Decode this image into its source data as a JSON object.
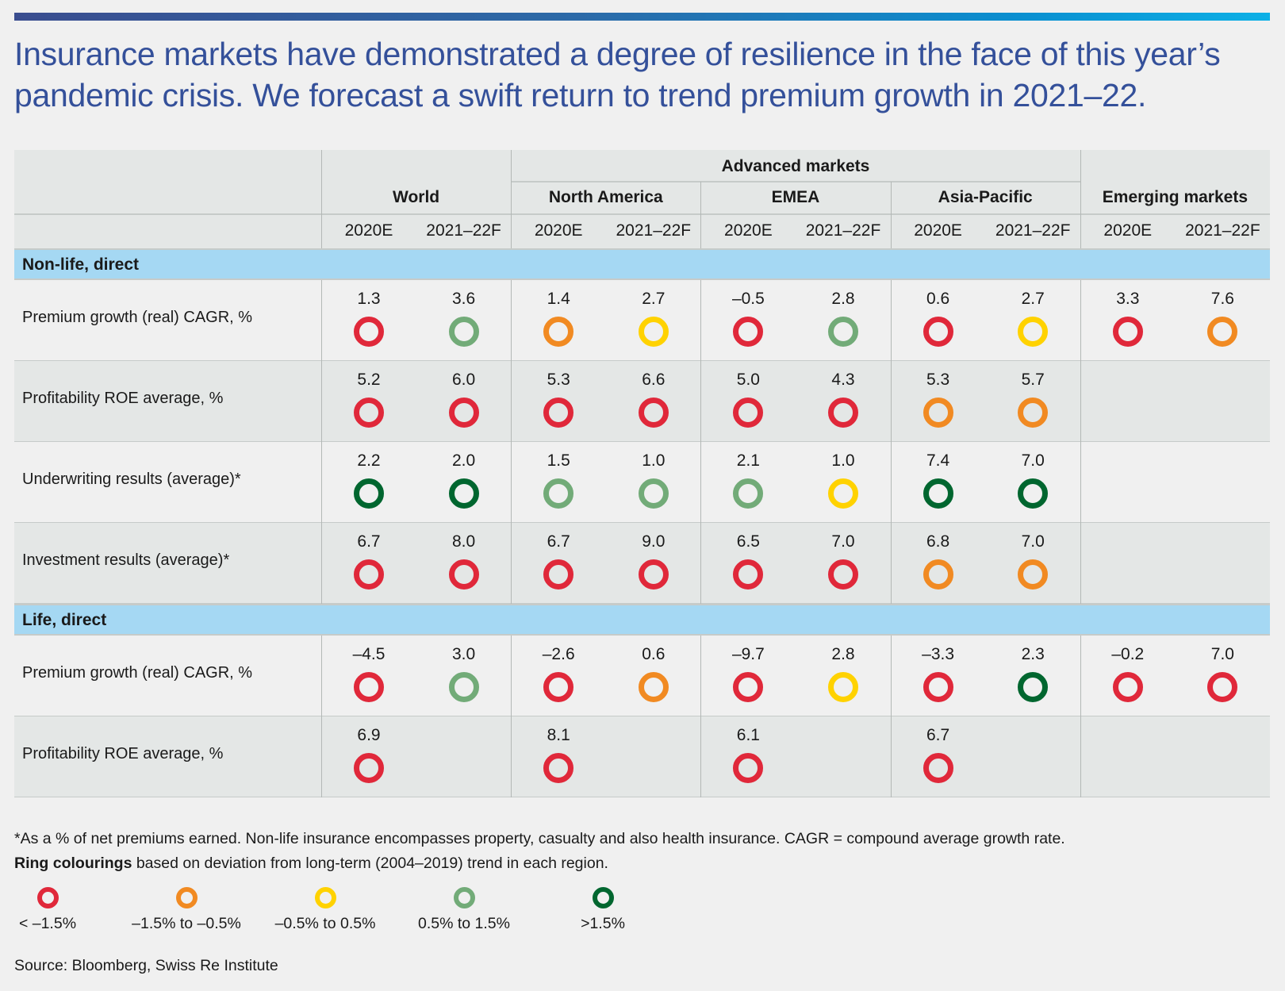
{
  "title": "Insurance markets have demonstrated a degree of resilience in the face of this year’s pandemic crisis. We forecast a swift return to trend premium growth in 2021–22.",
  "colors": {
    "lt-1.5": "#e0283a",
    "-1.5to-0.5": "#f18a22",
    "-0.5to0.5": "#ffd200",
    "0.5to1.5": "#72ab78",
    "gt1.5": "#00662f"
  },
  "header": {
    "advanced": "Advanced markets",
    "groups": [
      "World",
      "North America",
      "EMEA",
      "Asia-Pacific",
      "Emerging markets"
    ],
    "years": [
      "2020E",
      "2021–22F",
      "2020E",
      "2021–22F",
      "2020E",
      "2021–22F",
      "2020E",
      "2021–22F",
      "2020E",
      "2021–22F"
    ]
  },
  "sections": [
    {
      "label": "Non-life, direct",
      "rows": [
        {
          "label": "Premium growth (real) CAGR, %",
          "cells": [
            [
              "1.3",
              "lt-1.5"
            ],
            [
              "3.6",
              "0.5to1.5"
            ],
            [
              "1.4",
              "-1.5to-0.5"
            ],
            [
              "2.7",
              "-0.5to0.5"
            ],
            [
              "–0.5",
              "lt-1.5"
            ],
            [
              "2.8",
              "0.5to1.5"
            ],
            [
              "0.6",
              "lt-1.5"
            ],
            [
              "2.7",
              "-0.5to0.5"
            ],
            [
              "3.3",
              "lt-1.5"
            ],
            [
              "7.6",
              "-1.5to-0.5"
            ]
          ]
        },
        {
          "label": "Profitability ROE average, %",
          "cells": [
            [
              "5.2",
              "lt-1.5"
            ],
            [
              "6.0",
              "lt-1.5"
            ],
            [
              "5.3",
              "lt-1.5"
            ],
            [
              "6.6",
              "lt-1.5"
            ],
            [
              "5.0",
              "lt-1.5"
            ],
            [
              "4.3",
              "lt-1.5"
            ],
            [
              "5.3",
              "-1.5to-0.5"
            ],
            [
              "5.7",
              "-1.5to-0.5"
            ],
            null,
            null
          ]
        },
        {
          "label": "Underwriting results (average)*",
          "cells": [
            [
              "2.2",
              "gt1.5"
            ],
            [
              "2.0",
              "gt1.5"
            ],
            [
              "1.5",
              "0.5to1.5"
            ],
            [
              "1.0",
              "0.5to1.5"
            ],
            [
              "2.1",
              "0.5to1.5"
            ],
            [
              "1.0",
              "-0.5to0.5"
            ],
            [
              "7.4",
              "gt1.5"
            ],
            [
              "7.0",
              "gt1.5"
            ],
            null,
            null
          ]
        },
        {
          "label": "Investment results (average)*",
          "cells": [
            [
              "6.7",
              "lt-1.5"
            ],
            [
              "8.0",
              "lt-1.5"
            ],
            [
              "6.7",
              "lt-1.5"
            ],
            [
              "9.0",
              "lt-1.5"
            ],
            [
              "6.5",
              "lt-1.5"
            ],
            [
              "7.0",
              "lt-1.5"
            ],
            [
              "6.8",
              "-1.5to-0.5"
            ],
            [
              "7.0",
              "-1.5to-0.5"
            ],
            null,
            null
          ]
        }
      ]
    },
    {
      "label": "Life, direct",
      "rows": [
        {
          "label": "Premium growth (real) CAGR, %",
          "cells": [
            [
              "–4.5",
              "lt-1.5"
            ],
            [
              "3.0",
              "0.5to1.5"
            ],
            [
              "–2.6",
              "lt-1.5"
            ],
            [
              "0.6",
              "-1.5to-0.5"
            ],
            [
              "–9.7",
              "lt-1.5"
            ],
            [
              "2.8",
              "-0.5to0.5"
            ],
            [
              "–3.3",
              "lt-1.5"
            ],
            [
              "2.3",
              "gt1.5"
            ],
            [
              "–0.2",
              "lt-1.5"
            ],
            [
              "7.0",
              "lt-1.5"
            ]
          ]
        },
        {
          "label": "Profitability ROE average, %",
          "cells": [
            [
              "6.9",
              "lt-1.5"
            ],
            null,
            [
              "8.1",
              "lt-1.5"
            ],
            null,
            [
              "6.1",
              "lt-1.5"
            ],
            null,
            [
              "6.7",
              "lt-1.5"
            ],
            null,
            null,
            null
          ]
        }
      ]
    }
  ],
  "footnote": "*As a % of net premiums earned. Non-life insurance encompasses property, casualty and also health insurance. CAGR = compound average growth rate.",
  "ring_note_bold": "Ring colourings",
  "ring_note": " based on deviation from long-term (2004–2019) trend in each region.",
  "legend": [
    {
      "key": "lt-1.5",
      "label": "< –1.5%"
    },
    {
      "key": "-1.5to-0.5",
      "label": "–1.5% to –0.5%"
    },
    {
      "key": "-0.5to0.5",
      "label": "–0.5% to 0.5%"
    },
    {
      "key": "0.5to1.5",
      "label": "0.5% to 1.5%"
    },
    {
      "key": "gt1.5",
      "label": ">1.5%"
    }
  ],
  "source": "Source: Bloomberg, Swiss Re Institute"
}
